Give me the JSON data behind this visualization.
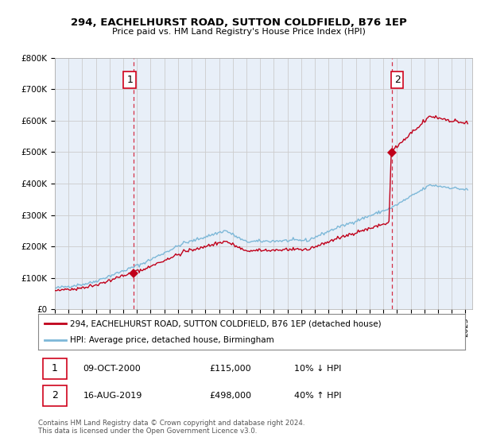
{
  "title": "294, EACHELHURST ROAD, SUTTON COLDFIELD, B76 1EP",
  "subtitle": "Price paid vs. HM Land Registry's House Price Index (HPI)",
  "ylabel_ticks": [
    "£0",
    "£100K",
    "£200K",
    "£300K",
    "£400K",
    "£500K",
    "£600K",
    "£700K",
    "£800K"
  ],
  "ylim": [
    0,
    800000
  ],
  "xlim_start": 1995.0,
  "xlim_end": 2025.5,
  "sale1_year": 2000.77,
  "sale1_price": 115000,
  "sale1_label": "1",
  "sale2_year": 2019.62,
  "sale2_price": 498000,
  "sale2_label": "2",
  "hpi_color": "#7db8d8",
  "property_color": "#c0001a",
  "dashed_color": "#d0021b",
  "chart_bg": "#e8eff8",
  "legend_property": "294, EACHELHURST ROAD, SUTTON COLDFIELD, B76 1EP (detached house)",
  "legend_hpi": "HPI: Average price, detached house, Birmingham",
  "annotation1_date": "09-OCT-2000",
  "annotation1_price": "£115,000",
  "annotation1_hpi": "10% ↓ HPI",
  "annotation2_date": "16-AUG-2019",
  "annotation2_price": "£498,000",
  "annotation2_hpi": "40% ↑ HPI",
  "footer": "Contains HM Land Registry data © Crown copyright and database right 2024.\nThis data is licensed under the Open Government Licence v3.0.",
  "background_color": "#ffffff"
}
